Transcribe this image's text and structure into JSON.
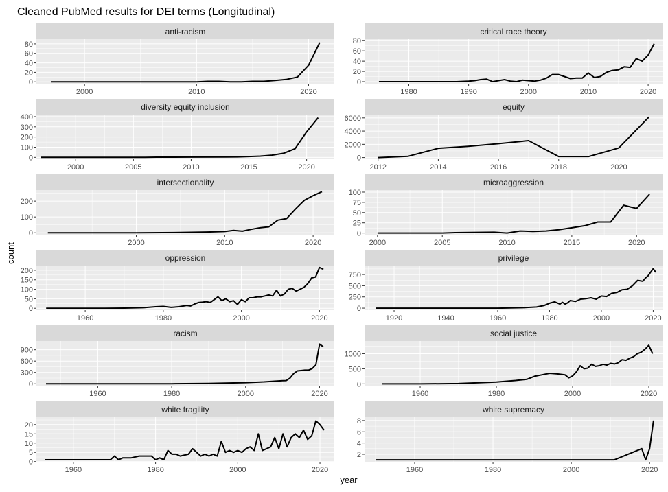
{
  "title": "Cleaned PubMed results for DEI terms (Longitudinal)",
  "xlabel": "year",
  "ylabel": "count",
  "colors": {
    "panel_bg": "#EBEBEB",
    "strip_bg": "#D9D9D9",
    "grid": "#FFFFFF",
    "line": "#000000",
    "text": "#1A1A1A",
    "tick_text": "#4D4D4D"
  },
  "chart_data": [
    {
      "type": "line",
      "name": "anti-racism",
      "xlim": [
        1995.7,
        2022.3
      ],
      "ylim": [
        -4,
        90
      ],
      "xticks": [
        2000,
        2010,
        2020
      ],
      "yticks": [
        0,
        20,
        40,
        60,
        80
      ],
      "points": [
        [
          1997,
          0
        ],
        [
          2005,
          0
        ],
        [
          2008,
          0
        ],
        [
          2010,
          0
        ],
        [
          2011,
          1
        ],
        [
          2012,
          1
        ],
        [
          2013,
          0
        ],
        [
          2014,
          0
        ],
        [
          2015,
          1
        ],
        [
          2016,
          1
        ],
        [
          2017,
          3
        ],
        [
          2018,
          5
        ],
        [
          2019,
          10
        ],
        [
          2020,
          35
        ],
        [
          2021,
          83
        ]
      ]
    },
    {
      "type": "line",
      "name": "critical race theory",
      "xlim": [
        1972.6,
        2022.4
      ],
      "ylim": [
        -4,
        83
      ],
      "xticks": [
        1980,
        1990,
        2000,
        2010,
        2020
      ],
      "yticks": [
        0,
        20,
        40,
        60,
        80
      ],
      "points": [
        [
          1975,
          0
        ],
        [
          1988,
          0
        ],
        [
          1990,
          1
        ],
        [
          1991,
          2
        ],
        [
          1992,
          4
        ],
        [
          1993,
          5
        ],
        [
          1994,
          0
        ],
        [
          1995,
          2
        ],
        [
          1996,
          4
        ],
        [
          1997,
          1
        ],
        [
          1998,
          0
        ],
        [
          1999,
          3
        ],
        [
          2000,
          2
        ],
        [
          2001,
          1
        ],
        [
          2002,
          3
        ],
        [
          2003,
          7
        ],
        [
          2004,
          14
        ],
        [
          2005,
          14
        ],
        [
          2006,
          10
        ],
        [
          2007,
          6
        ],
        [
          2008,
          7
        ],
        [
          2009,
          7
        ],
        [
          2010,
          17
        ],
        [
          2011,
          8
        ],
        [
          2012,
          10
        ],
        [
          2013,
          18
        ],
        [
          2014,
          22
        ],
        [
          2015,
          23
        ],
        [
          2016,
          29
        ],
        [
          2017,
          28
        ],
        [
          2018,
          45
        ],
        [
          2019,
          40
        ],
        [
          2020,
          52
        ],
        [
          2021,
          74
        ]
      ]
    },
    {
      "type": "line",
      "name": "diversity equity inclusion",
      "xlim": [
        1996.6,
        2022.4
      ],
      "ylim": [
        -18,
        420
      ],
      "xticks": [
        2000,
        2005,
        2010,
        2015,
        2020
      ],
      "yticks": [
        0,
        100,
        200,
        300,
        400
      ],
      "points": [
        [
          1997,
          0
        ],
        [
          2006,
          0
        ],
        [
          2007,
          2
        ],
        [
          2010,
          3
        ],
        [
          2013,
          4
        ],
        [
          2014,
          5
        ],
        [
          2015,
          8
        ],
        [
          2016,
          12
        ],
        [
          2017,
          22
        ],
        [
          2018,
          40
        ],
        [
          2019,
          85
        ],
        [
          2020,
          250
        ],
        [
          2021,
          390
        ]
      ]
    },
    {
      "type": "line",
      "name": "equity",
      "xlim": [
        2011.55,
        2021.45
      ],
      "ylim": [
        -250,
        6500
      ],
      "xticks": [
        2012,
        2014,
        2016,
        2018,
        2020
      ],
      "yticks": [
        0,
        2000,
        4000,
        6000
      ],
      "points": [
        [
          2012,
          0
        ],
        [
          2013,
          200
        ],
        [
          2014,
          1400
        ],
        [
          2015,
          1700
        ],
        [
          2016,
          2100
        ],
        [
          2017,
          2550
        ],
        [
          2018,
          150
        ],
        [
          2019,
          150
        ],
        [
          2020,
          1450
        ],
        [
          2021,
          6150
        ]
      ]
    },
    {
      "type": "line",
      "name": "intersectionality",
      "xlim": [
        1988.7,
        2022.4
      ],
      "ylim": [
        -12,
        270
      ],
      "xticks": [
        2000,
        2010,
        2020
      ],
      "yticks": [
        0,
        100,
        200
      ],
      "points": [
        [
          1990,
          0
        ],
        [
          2000,
          0
        ],
        [
          2005,
          2
        ],
        [
          2008,
          5
        ],
        [
          2010,
          8
        ],
        [
          2011,
          15
        ],
        [
          2012,
          10
        ],
        [
          2013,
          22
        ],
        [
          2014,
          32
        ],
        [
          2015,
          38
        ],
        [
          2016,
          80
        ],
        [
          2017,
          90
        ],
        [
          2018,
          150
        ],
        [
          2019,
          205
        ],
        [
          2020,
          235
        ],
        [
          2021,
          260
        ]
      ]
    },
    {
      "type": "line",
      "name": "microaggression",
      "xlim": [
        1999.0,
        2022.0
      ],
      "ylim": [
        -4,
        105
      ],
      "xticks": [
        2000,
        2005,
        2010,
        2015,
        2020
      ],
      "yticks": [
        0,
        25,
        50,
        75,
        100
      ],
      "points": [
        [
          2000,
          0
        ],
        [
          2005,
          0
        ],
        [
          2006,
          1
        ],
        [
          2009,
          2
        ],
        [
          2010,
          0
        ],
        [
          2011,
          5
        ],
        [
          2012,
          4
        ],
        [
          2013,
          5
        ],
        [
          2014,
          8
        ],
        [
          2015,
          13
        ],
        [
          2016,
          18
        ],
        [
          2017,
          27
        ],
        [
          2018,
          27
        ],
        [
          2019,
          68
        ],
        [
          2020,
          60
        ],
        [
          2021,
          95
        ]
      ]
    },
    {
      "type": "line",
      "name": "oppression",
      "xlim": [
        1947.5,
        2023.8
      ],
      "ylim": [
        -10,
        225
      ],
      "xticks": [
        1960,
        1980,
        2000,
        2020
      ],
      "yticks": [
        0,
        50,
        100,
        150,
        200
      ],
      "points": [
        [
          1950,
          0
        ],
        [
          1960,
          0
        ],
        [
          1965,
          0
        ],
        [
          1970,
          1
        ],
        [
          1975,
          3
        ],
        [
          1978,
          8
        ],
        [
          1980,
          10
        ],
        [
          1982,
          5
        ],
        [
          1984,
          8
        ],
        [
          1986,
          15
        ],
        [
          1987,
          12
        ],
        [
          1988,
          22
        ],
        [
          1989,
          30
        ],
        [
          1990,
          32
        ],
        [
          1991,
          35
        ],
        [
          1992,
          30
        ],
        [
          1993,
          45
        ],
        [
          1994,
          60
        ],
        [
          1995,
          40
        ],
        [
          1996,
          50
        ],
        [
          1997,
          35
        ],
        [
          1998,
          40
        ],
        [
          1999,
          20
        ],
        [
          2000,
          45
        ],
        [
          2001,
          35
        ],
        [
          2002,
          55
        ],
        [
          2003,
          55
        ],
        [
          2004,
          60
        ],
        [
          2005,
          60
        ],
        [
          2006,
          65
        ],
        [
          2007,
          70
        ],
        [
          2008,
          65
        ],
        [
          2009,
          95
        ],
        [
          2010,
          65
        ],
        [
          2011,
          75
        ],
        [
          2012,
          100
        ],
        [
          2013,
          105
        ],
        [
          2014,
          90
        ],
        [
          2015,
          100
        ],
        [
          2016,
          110
        ],
        [
          2017,
          130
        ],
        [
          2018,
          160
        ],
        [
          2019,
          165
        ],
        [
          2020,
          215
        ],
        [
          2021,
          205
        ]
      ]
    },
    {
      "type": "line",
      "name": "privilege",
      "xlim": [
        1908.6,
        2023.6
      ],
      "ylim": [
        -45,
        950
      ],
      "xticks": [
        1920,
        1940,
        1960,
        1980,
        2000,
        2020
      ],
      "yticks": [
        0,
        250,
        500,
        750
      ],
      "points": [
        [
          1913,
          0
        ],
        [
          1940,
          0
        ],
        [
          1960,
          0
        ],
        [
          1965,
          5
        ],
        [
          1970,
          10
        ],
        [
          1975,
          25
        ],
        [
          1978,
          60
        ],
        [
          1980,
          110
        ],
        [
          1982,
          140
        ],
        [
          1984,
          90
        ],
        [
          1985,
          130
        ],
        [
          1986,
          90
        ],
        [
          1987,
          120
        ],
        [
          1988,
          170
        ],
        [
          1990,
          150
        ],
        [
          1992,
          200
        ],
        [
          1994,
          210
        ],
        [
          1996,
          230
        ],
        [
          1998,
          200
        ],
        [
          2000,
          270
        ],
        [
          2002,
          260
        ],
        [
          2004,
          330
        ],
        [
          2006,
          350
        ],
        [
          2008,
          410
        ],
        [
          2010,
          420
        ],
        [
          2012,
          500
        ],
        [
          2013,
          560
        ],
        [
          2014,
          620
        ],
        [
          2016,
          600
        ],
        [
          2017,
          670
        ],
        [
          2018,
          720
        ],
        [
          2019,
          800
        ],
        [
          2020,
          880
        ],
        [
          2021,
          800
        ]
      ]
    },
    {
      "type": "line",
      "name": "racism",
      "xlim": [
        1943.4,
        2024.0
      ],
      "ylim": [
        -50,
        1130
      ],
      "xticks": [
        1960,
        1980,
        2000,
        2020
      ],
      "yticks": [
        0,
        300,
        600,
        900
      ],
      "points": [
        [
          1946,
          0
        ],
        [
          1980,
          0
        ],
        [
          1990,
          10
        ],
        [
          2000,
          30
        ],
        [
          2005,
          50
        ],
        [
          2010,
          80
        ],
        [
          2011,
          85
        ],
        [
          2012,
          150
        ],
        [
          2013,
          270
        ],
        [
          2014,
          340
        ],
        [
          2015,
          350
        ],
        [
          2016,
          360
        ],
        [
          2017,
          360
        ],
        [
          2018,
          400
        ],
        [
          2019,
          500
        ],
        [
          2020,
          1050
        ],
        [
          2021,
          980
        ]
      ]
    },
    {
      "type": "line",
      "name": "social justice",
      "xlim": [
        1945.4,
        2023.6
      ],
      "ylim": [
        -60,
        1420
      ],
      "xticks": [
        1960,
        1980,
        2000,
        2020
      ],
      "yticks": [
        0,
        500,
        1000
      ],
      "points": [
        [
          1950,
          0
        ],
        [
          1960,
          0
        ],
        [
          1970,
          10
        ],
        [
          1980,
          60
        ],
        [
          1985,
          110
        ],
        [
          1988,
          150
        ],
        [
          1990,
          250
        ],
        [
          1992,
          300
        ],
        [
          1994,
          350
        ],
        [
          1996,
          330
        ],
        [
          1998,
          300
        ],
        [
          1999,
          200
        ],
        [
          2000,
          260
        ],
        [
          2001,
          400
        ],
        [
          2002,
          600
        ],
        [
          2003,
          500
        ],
        [
          2004,
          520
        ],
        [
          2005,
          650
        ],
        [
          2006,
          580
        ],
        [
          2007,
          600
        ],
        [
          2008,
          650
        ],
        [
          2009,
          620
        ],
        [
          2010,
          680
        ],
        [
          2011,
          660
        ],
        [
          2012,
          700
        ],
        [
          2013,
          800
        ],
        [
          2014,
          780
        ],
        [
          2015,
          850
        ],
        [
          2016,
          900
        ],
        [
          2017,
          1000
        ],
        [
          2018,
          1050
        ],
        [
          2019,
          1150
        ],
        [
          2020,
          1280
        ],
        [
          2021,
          1000
        ]
      ]
    },
    {
      "type": "line",
      "name": "white fragility",
      "xlim": [
        1951.0,
        2023.5
      ],
      "ylim": [
        -0.1,
        24
      ],
      "xticks": [
        1960,
        1980,
        2000,
        2020
      ],
      "yticks": [
        0,
        5,
        10,
        15,
        20
      ],
      "points": [
        [
          1953,
          1
        ],
        [
          1969,
          1
        ],
        [
          1970,
          3
        ],
        [
          1971,
          1
        ],
        [
          1972,
          2
        ],
        [
          1974,
          2
        ],
        [
          1976,
          3
        ],
        [
          1978,
          3
        ],
        [
          1979,
          3
        ],
        [
          1980,
          1
        ],
        [
          1981,
          2
        ],
        [
          1982,
          1
        ],
        [
          1983,
          6
        ],
        [
          1984,
          4
        ],
        [
          1985,
          4
        ],
        [
          1986,
          3
        ],
        [
          1988,
          4
        ],
        [
          1989,
          7
        ],
        [
          1990,
          5
        ],
        [
          1991,
          3
        ],
        [
          1992,
          4
        ],
        [
          1993,
          3
        ],
        [
          1994,
          4
        ],
        [
          1995,
          3
        ],
        [
          1996,
          11
        ],
        [
          1997,
          5
        ],
        [
          1998,
          6
        ],
        [
          1999,
          5
        ],
        [
          2000,
          6
        ],
        [
          2001,
          5
        ],
        [
          2002,
          7
        ],
        [
          2003,
          8
        ],
        [
          2004,
          6
        ],
        [
          2005,
          15
        ],
        [
          2006,
          6
        ],
        [
          2007,
          7
        ],
        [
          2008,
          8
        ],
        [
          2009,
          13
        ],
        [
          2010,
          7
        ],
        [
          2011,
          15
        ],
        [
          2012,
          8
        ],
        [
          2013,
          13
        ],
        [
          2014,
          15
        ],
        [
          2015,
          13
        ],
        [
          2016,
          17
        ],
        [
          2017,
          12
        ],
        [
          2018,
          14
        ],
        [
          2019,
          22
        ],
        [
          2020,
          20
        ],
        [
          2021,
          17
        ]
      ]
    },
    {
      "type": "line",
      "name": "white supremacy",
      "xlim": [
        1947.2,
        2023.3
      ],
      "ylim": [
        0.65,
        8.6
      ],
      "xticks": [
        1960,
        1980,
        2000,
        2020
      ],
      "yticks": [
        2,
        4,
        6,
        8
      ],
      "points": [
        [
          1950,
          1
        ],
        [
          2011,
          1
        ],
        [
          2018,
          3
        ],
        [
          2019,
          1
        ],
        [
          2020,
          3
        ],
        [
          2021,
          8
        ]
      ]
    }
  ]
}
